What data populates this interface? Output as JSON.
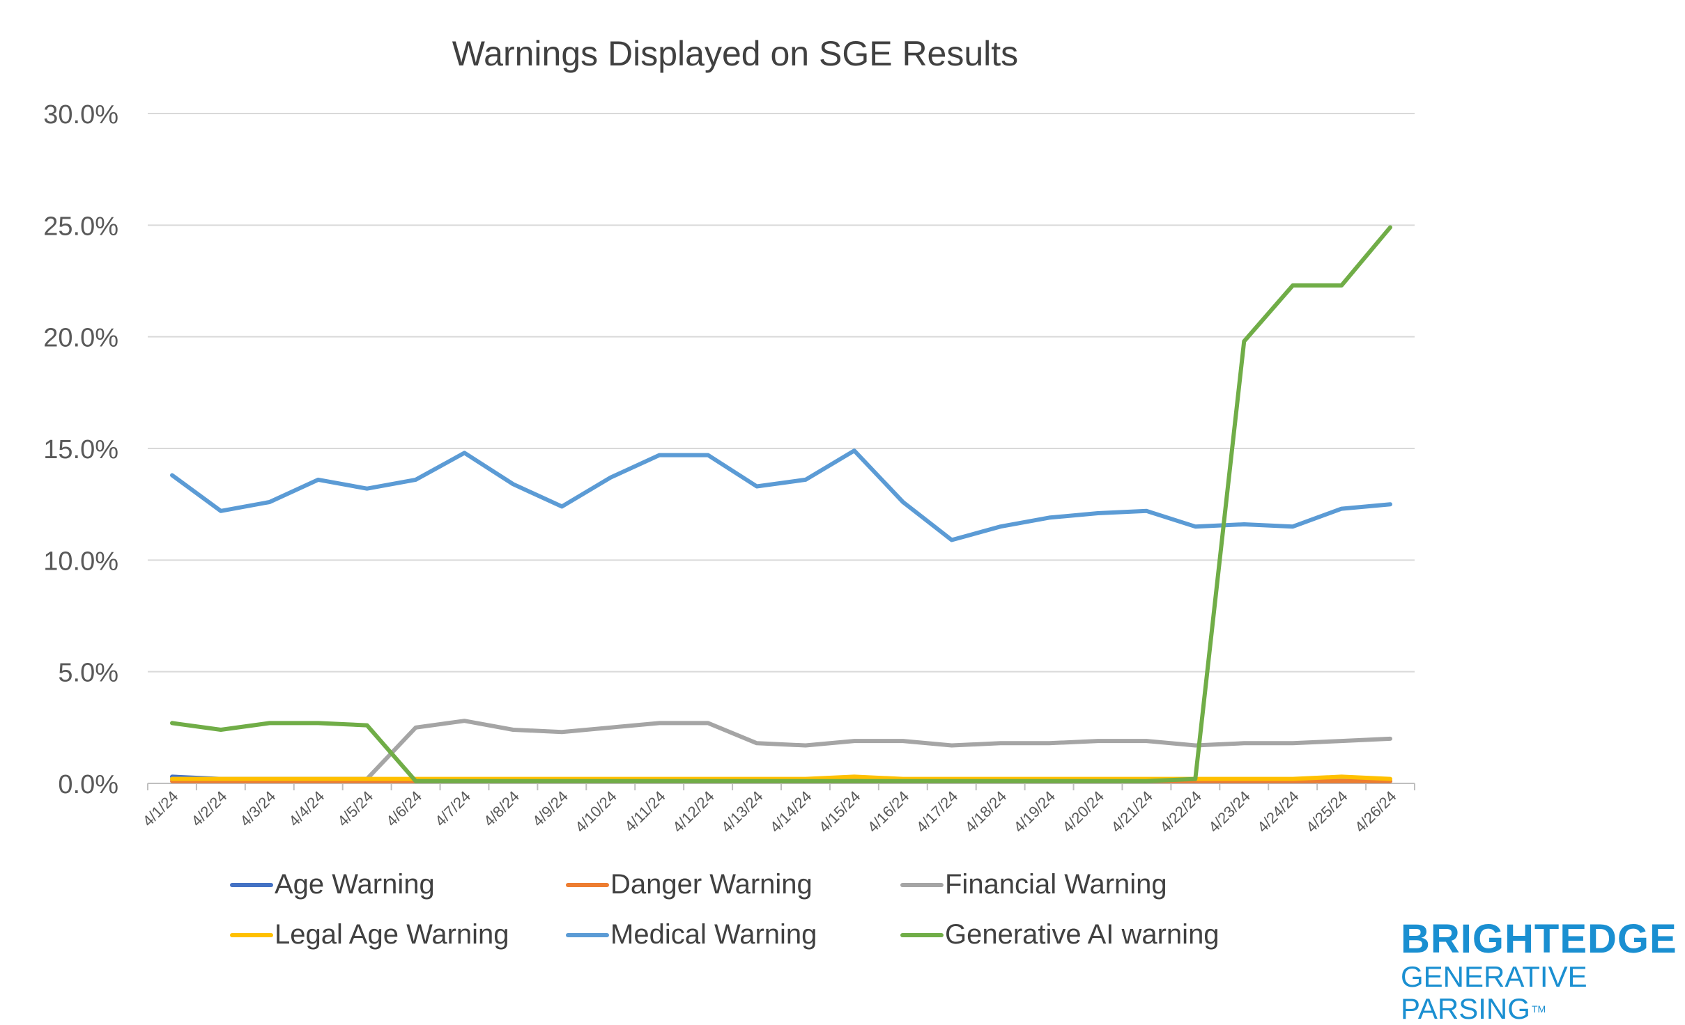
{
  "chart_data": {
    "type": "line",
    "title": "Warnings Displayed on SGE Results",
    "xlabel": "",
    "ylabel": "",
    "ylim": [
      0,
      30
    ],
    "yticks": [
      "0.0%",
      "5.0%",
      "10.0%",
      "15.0%",
      "20.0%",
      "25.0%",
      "30.0%"
    ],
    "grid": true,
    "legend_position": "bottom",
    "x": [
      "4/1/24",
      "4/2/24",
      "4/3/24",
      "4/4/24",
      "4/5/24",
      "4/6/24",
      "4/7/24",
      "4/8/24",
      "4/9/24",
      "4/10/24",
      "4/11/24",
      "4/12/24",
      "4/13/24",
      "4/14/24",
      "4/15/24",
      "4/16/24",
      "4/17/24",
      "4/18/24",
      "4/19/24",
      "4/20/24",
      "4/21/24",
      "4/22/24",
      "4/23/24",
      "4/24/24",
      "4/25/24",
      "4/26/24"
    ],
    "series": [
      {
        "name": "Age Warning",
        "color": "#4472C4",
        "values": [
          0.3,
          0.2,
          0.2,
          0.2,
          0.2,
          0.1,
          0.1,
          0.1,
          0.1,
          0.1,
          0.1,
          0.1,
          0.1,
          0.1,
          0.1,
          0.1,
          0.1,
          0.1,
          0.1,
          0.1,
          0.1,
          0.1,
          0.1,
          0.1,
          0.1,
          0.1
        ]
      },
      {
        "name": "Danger Warning",
        "color": "#ED7D31",
        "values": [
          0.1,
          0.1,
          0.1,
          0.1,
          0.1,
          0.1,
          0.1,
          0.1,
          0.1,
          0.1,
          0.1,
          0.1,
          0.1,
          0.1,
          0.1,
          0.1,
          0.1,
          0.1,
          0.1,
          0.1,
          0.1,
          0.1,
          0.1,
          0.1,
          0.1,
          0.1
        ]
      },
      {
        "name": "Financial Warning",
        "color": "#A5A5A5",
        "values": [
          0.2,
          0.2,
          0.2,
          0.2,
          0.2,
          2.5,
          2.8,
          2.4,
          2.3,
          2.5,
          2.7,
          2.7,
          1.8,
          1.7,
          1.9,
          1.9,
          1.7,
          1.8,
          1.8,
          1.9,
          1.9,
          1.7,
          1.8,
          1.8,
          1.9,
          2.0
        ]
      },
      {
        "name": "Legal Age Warning",
        "color": "#FFC000",
        "values": [
          0.2,
          0.2,
          0.2,
          0.2,
          0.2,
          0.2,
          0.2,
          0.2,
          0.2,
          0.2,
          0.2,
          0.2,
          0.2,
          0.2,
          0.3,
          0.2,
          0.2,
          0.2,
          0.2,
          0.2,
          0.2,
          0.2,
          0.2,
          0.2,
          0.3,
          0.2
        ]
      },
      {
        "name": "Medical Warning",
        "color": "#5B9BD5",
        "values": [
          13.8,
          12.2,
          12.6,
          13.6,
          13.2,
          13.6,
          14.8,
          13.4,
          12.4,
          13.7,
          14.7,
          14.7,
          13.3,
          13.6,
          14.9,
          12.6,
          10.9,
          11.5,
          11.9,
          12.1,
          12.2,
          11.5,
          11.6,
          11.5,
          12.3,
          12.5
        ]
      },
      {
        "name": "Generative AI warning",
        "color": "#70AD47",
        "values": [
          2.7,
          2.4,
          2.7,
          2.7,
          2.6,
          0.1,
          0.1,
          0.1,
          0.1,
          0.1,
          0.1,
          0.1,
          0.1,
          0.1,
          0.1,
          0.1,
          0.1,
          0.1,
          0.1,
          0.1,
          0.1,
          0.2,
          19.8,
          22.3,
          22.3,
          24.9
        ]
      }
    ]
  },
  "brand": {
    "name": "BRIGHTEDGE",
    "tagline": "GENERATIVE PARSING",
    "trademark": "TM",
    "color": "#1A8FD1"
  }
}
